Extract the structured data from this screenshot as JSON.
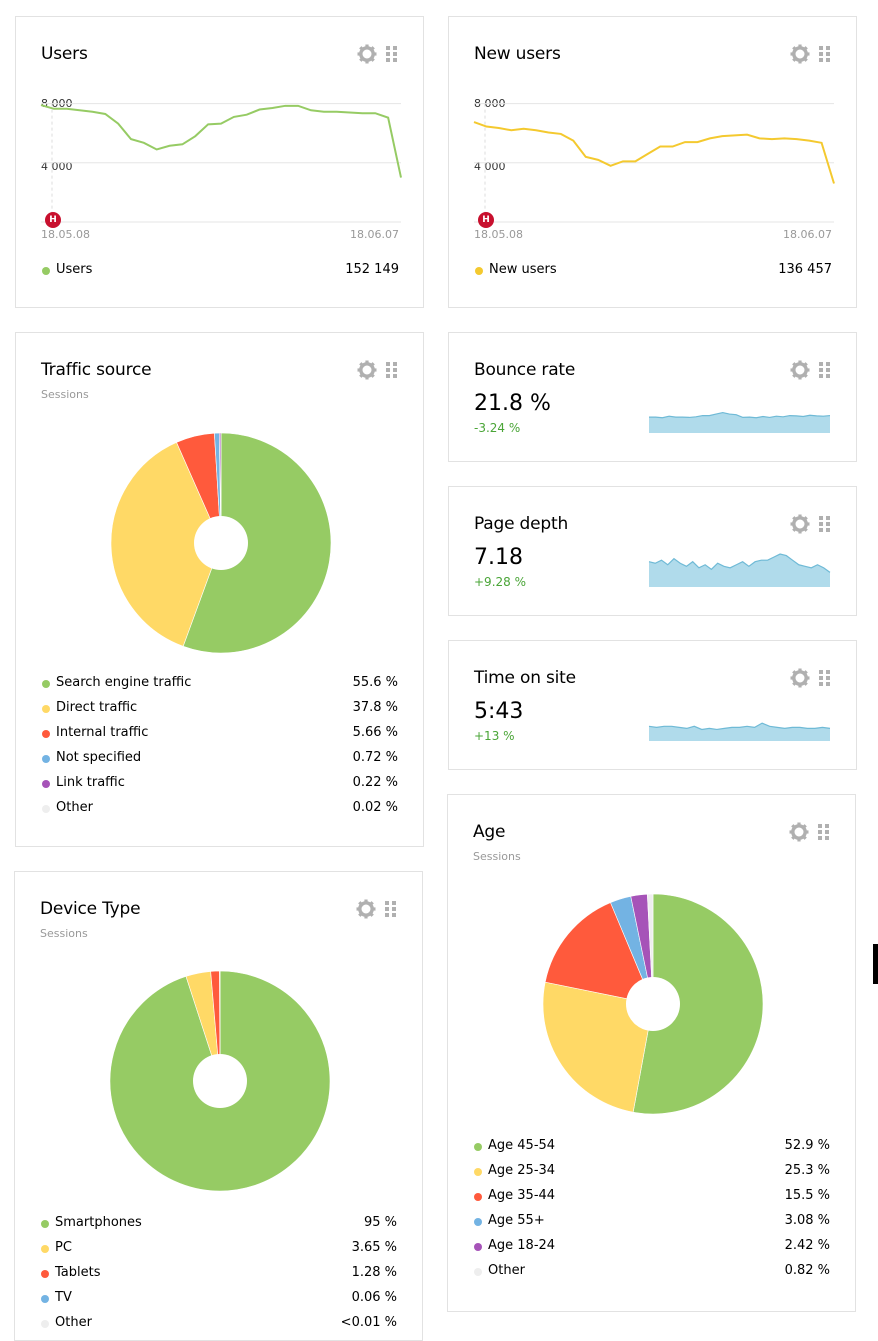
{
  "icons": {
    "settings": "gear-icon",
    "drag": "drag-handle-icon",
    "marker": "annotation-marker-icon"
  },
  "colors": {
    "green": "#96cb64",
    "yellow": "#ffd966",
    "red": "#ff5a3c",
    "blue": "#73b3e3",
    "purple": "#a653b8",
    "grey": "#eeeeee",
    "sparkline": "#b0dbeb",
    "sparkline_line": "#6fbad6",
    "positive": "#4aa537",
    "marker": "#c8102e"
  },
  "users": {
    "title": "Users",
    "ticks": [
      "8 000",
      "4 000"
    ],
    "date_start": "18.05.08",
    "date_end": "18.06.07",
    "marker": "Н",
    "legend_label": "Users",
    "legend_value": "152 149"
  },
  "new_users": {
    "title": "New users",
    "ticks": [
      "8 000",
      "4 000"
    ],
    "date_start": "18.05.08",
    "date_end": "18.06.07",
    "marker": "Н",
    "legend_label": "New users",
    "legend_value": "136 457"
  },
  "traffic": {
    "title": "Traffic source",
    "subtitle": "Sessions",
    "items": [
      {
        "label": "Search engine traffic",
        "value": "55.6 %",
        "color": "#96cb64"
      },
      {
        "label": "Direct traffic",
        "value": "37.8 %",
        "color": "#ffd966"
      },
      {
        "label": "Internal traffic",
        "value": "5.66 %",
        "color": "#ff5a3c"
      },
      {
        "label": "Not specified",
        "value": "0.72 %",
        "color": "#73b3e3"
      },
      {
        "label": "Link traffic",
        "value": "0.22 %",
        "color": "#a653b8"
      },
      {
        "label": "Other",
        "value": "0.02 %",
        "color": "#eeeeee"
      }
    ]
  },
  "bounce": {
    "title": "Bounce rate",
    "value": "21.8 %",
    "delta": "-3.24 %"
  },
  "depth": {
    "title": "Page depth",
    "value": "7.18",
    "delta": "+9.28 %"
  },
  "time": {
    "title": "Time on site",
    "value": "5:43",
    "delta": "+13 %"
  },
  "age": {
    "title": "Age",
    "subtitle": "Sessions",
    "items": [
      {
        "label": "Age 45-54",
        "value": "52.9 %",
        "color": "#96cb64"
      },
      {
        "label": "Age 25-34",
        "value": "25.3 %",
        "color": "#ffd966"
      },
      {
        "label": "Age 35-44",
        "value": "15.5 %",
        "color": "#ff5a3c"
      },
      {
        "label": "Age 55+",
        "value": "3.08 %",
        "color": "#73b3e3"
      },
      {
        "label": "Age 18-24",
        "value": "2.42 %",
        "color": "#a653b8"
      },
      {
        "label": "Other",
        "value": "0.82 %",
        "color": "#eeeeee"
      }
    ]
  },
  "device": {
    "title": "Device Type",
    "subtitle": "Sessions",
    "items": [
      {
        "label": "Smartphones",
        "value": "95 %",
        "color": "#96cb64"
      },
      {
        "label": "PC",
        "value": "3.65 %",
        "color": "#ffd966"
      },
      {
        "label": "Tablets",
        "value": "1.28 %",
        "color": "#ff5a3c"
      },
      {
        "label": "TV",
        "value": "0.06 %",
        "color": "#73b3e3"
      },
      {
        "label": "Other",
        "value": "<0.01 %",
        "color": "#eeeeee"
      }
    ]
  },
  "chart_data": [
    {
      "type": "line",
      "title": "Users",
      "ylim": [
        0,
        9000
      ],
      "x_start": "18.05.08",
      "x_end": "18.06.07",
      "series": [
        {
          "name": "Users",
          "values": [
            7900,
            7650,
            7650,
            7550,
            7450,
            7300,
            6650,
            5600,
            5350,
            4900,
            5150,
            5250,
            5800,
            6600,
            6650,
            7100,
            7250,
            7600,
            7700,
            7850,
            7850,
            7550,
            7450,
            7450,
            7400,
            7350,
            7350,
            7050,
            3000
          ]
        }
      ]
    },
    {
      "type": "line",
      "title": "New users",
      "ylim": [
        0,
        9000
      ],
      "x_start": "18.05.08",
      "x_end": "18.06.07",
      "series": [
        {
          "name": "New users",
          "values": [
            6750,
            6450,
            6350,
            6200,
            6300,
            6200,
            6050,
            5950,
            5500,
            4400,
            4200,
            3800,
            4100,
            4100,
            4600,
            5100,
            5100,
            5400,
            5400,
            5650,
            5800,
            5850,
            5900,
            5650,
            5600,
            5650,
            5600,
            5500,
            5350,
            2600
          ]
        }
      ]
    },
    {
      "type": "pie",
      "title": "Traffic source",
      "categories": [
        "Search engine traffic",
        "Direct traffic",
        "Internal traffic",
        "Not specified",
        "Link traffic",
        "Other"
      ],
      "values": [
        55.6,
        37.8,
        5.66,
        0.72,
        0.22,
        0.02
      ]
    },
    {
      "type": "area",
      "title": "Bounce rate",
      "values": [
        20,
        20,
        19.8,
        20.3,
        20,
        20,
        19.9,
        20.1,
        20.5,
        20.5,
        21,
        21.5,
        21,
        20.8,
        19.9,
        20,
        19.8,
        20.2,
        19.9,
        20.3,
        20.1,
        20.5,
        20.4,
        20.2,
        20.6,
        20.4,
        20.3,
        20.5
      ]
    },
    {
      "type": "area",
      "title": "Page depth",
      "values": [
        7.3,
        7.2,
        7.4,
        7.1,
        7.5,
        7.2,
        7.0,
        7.3,
        6.9,
        7.1,
        6.8,
        7.2,
        7.0,
        6.9,
        7.1,
        7.3,
        7.0,
        7.3,
        7.4,
        7.4,
        7.6,
        7.8,
        7.7,
        7.4,
        7.1,
        7.0,
        6.9,
        7.1,
        6.9,
        6.6
      ]
    },
    {
      "type": "area",
      "title": "Time on site",
      "values": [
        5.6,
        5.5,
        5.6,
        5.6,
        5.5,
        5.4,
        5.6,
        5.3,
        5.4,
        5.3,
        5.4,
        5.5,
        5.5,
        5.6,
        5.5,
        5.9,
        5.6,
        5.5,
        5.4,
        5.5,
        5.5,
        5.4,
        5.4,
        5.5,
        5.4
      ]
    },
    {
      "type": "pie",
      "title": "Age",
      "categories": [
        "Age 45-54",
        "Age 25-34",
        "Age 35-44",
        "Age 55+",
        "Age 18-24",
        "Other"
      ],
      "values": [
        52.9,
        25.3,
        15.5,
        3.08,
        2.42,
        0.82
      ]
    },
    {
      "type": "pie",
      "title": "Device Type",
      "categories": [
        "Smartphones",
        "PC",
        "Tablets",
        "TV",
        "Other"
      ],
      "values": [
        95,
        3.65,
        1.28,
        0.06,
        0.01
      ]
    }
  ]
}
